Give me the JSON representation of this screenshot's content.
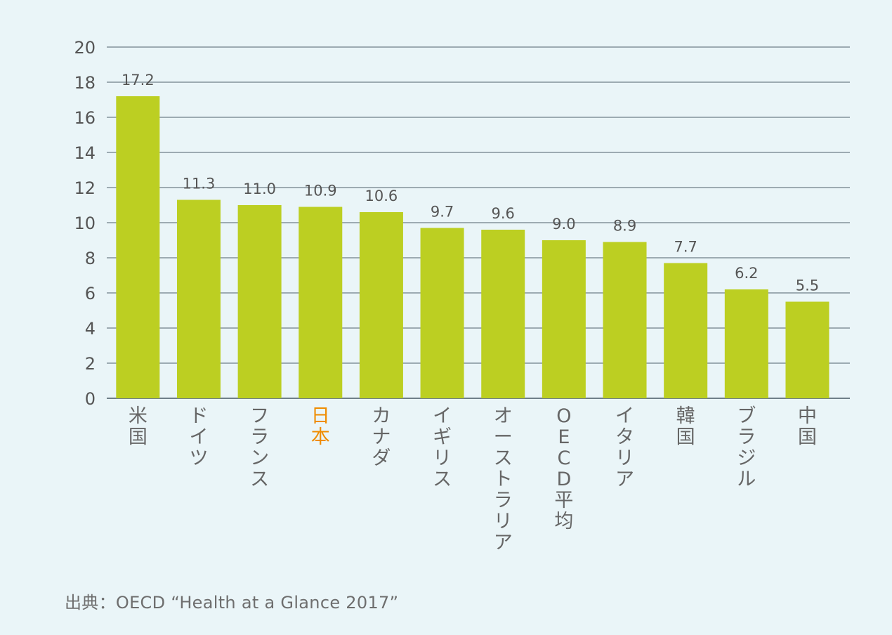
{
  "chart_data": {
    "type": "bar",
    "title": "",
    "xlabel": "",
    "ylabel": "",
    "ylim": [
      0,
      20
    ],
    "yticks": [
      0,
      2,
      4,
      6,
      8,
      10,
      12,
      14,
      16,
      18,
      20
    ],
    "grid": true,
    "legend": "none",
    "categories": [
      "米国",
      "ドイツ",
      "フランス",
      "日本",
      "カナダ",
      "イギリス",
      "オーストラリア",
      "OECD平均",
      "イタリア",
      "韓国",
      "ブラジル",
      "中国"
    ],
    "values": [
      17.2,
      11.3,
      11.0,
      10.9,
      10.6,
      9.7,
      9.6,
      9.0,
      8.9,
      7.7,
      6.2,
      5.5
    ],
    "value_labels": [
      "17.2",
      "11.3",
      "11.0",
      "10.9",
      "10.6",
      "9.7",
      "9.6",
      "9.0",
      "8.9",
      "7.7",
      "6.2",
      "5.5"
    ],
    "highlight_category": "日本"
  },
  "colors": {
    "background": "#eaf5f8",
    "bar": "#bccf22",
    "grid": "#6f7f88",
    "axis_text": "#555555",
    "category_text": "#666666",
    "highlight_text": "#ef8c00"
  },
  "source": "出典：OECD “Health at a Glance 2017”"
}
